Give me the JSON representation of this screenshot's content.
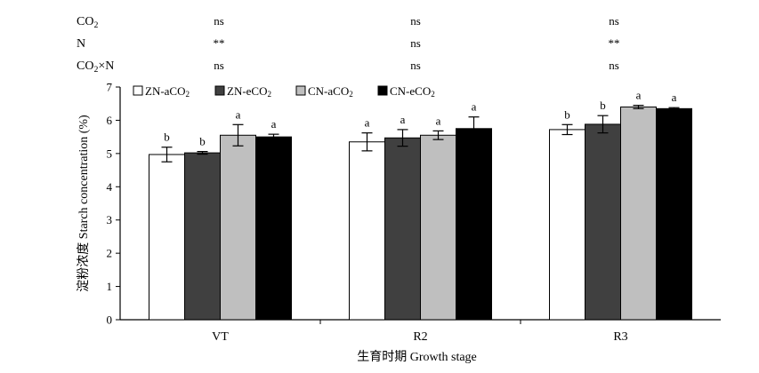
{
  "stats_table": {
    "rows": [
      {
        "label_main": "CO",
        "label_sub": "2",
        "label_tail": "",
        "values": [
          "ns",
          "ns",
          "ns"
        ]
      },
      {
        "label_main": "N",
        "label_sub": "",
        "label_tail": "",
        "values": [
          "**",
          "ns",
          "**"
        ]
      },
      {
        "label_main": "CO",
        "label_sub": "2",
        "label_tail": "×N",
        "values": [
          "ns",
          "ns",
          "ns"
        ]
      }
    ]
  },
  "colors": {
    "ZN-aCO2": "#ffffff",
    "ZN-eCO2": "#404040",
    "CN-aCO2": "#bfbfbf",
    "CN-eCO2": "#000000"
  },
  "chart_data": {
    "type": "bar",
    "title": "",
    "xlabel": "生育时期 Growth stage",
    "ylabel": "淀粉浓度 Starch concentration (%)",
    "ylim": [
      0,
      7
    ],
    "yticks": [
      "0",
      "1",
      "2",
      "3",
      "4",
      "5",
      "6",
      "7"
    ],
    "categories": [
      "VT",
      "R2",
      "R3"
    ],
    "legend_position": "top-left inside",
    "series": [
      {
        "key": "ZN-aCO2",
        "name_main": "ZN-aCO",
        "name_sub": "2",
        "values": [
          4.97,
          5.35,
          5.72
        ],
        "errors": [
          0.22,
          0.27,
          0.15
        ],
        "letters": [
          "b",
          "a",
          "b"
        ]
      },
      {
        "key": "ZN-eCO2",
        "name_main": "ZN-eCO",
        "name_sub": "2",
        "values": [
          5.02,
          5.47,
          5.88
        ],
        "errors": [
          0.04,
          0.25,
          0.26
        ],
        "letters": [
          "b",
          "a",
          "b"
        ]
      },
      {
        "key": "CN-aCO2",
        "name_main": "CN-aCO",
        "name_sub": "2",
        "values": [
          5.55,
          5.55,
          6.4
        ],
        "errors": [
          0.32,
          0.13,
          0.05
        ],
        "letters": [
          "a",
          "a",
          "a"
        ]
      },
      {
        "key": "CN-eCO2",
        "name_main": "CN-eCO",
        "name_sub": "2",
        "values": [
          5.5,
          5.75,
          6.35
        ],
        "errors": [
          0.08,
          0.35,
          0.03
        ],
        "letters": [
          "a",
          "a",
          "a"
        ]
      }
    ]
  }
}
